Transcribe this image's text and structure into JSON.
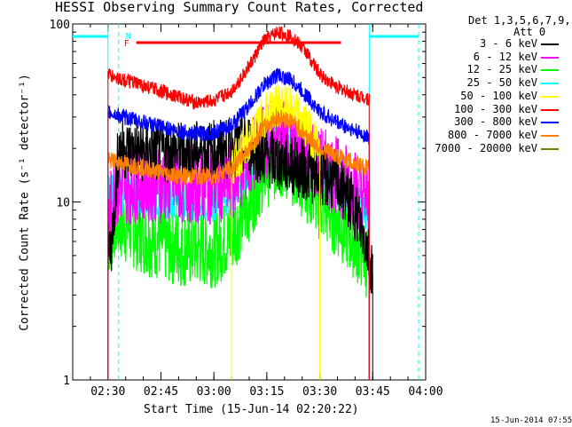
{
  "chart_data": {
    "type": "line",
    "title": "HESSI Observing Summary Count Rates, Corrected",
    "xlabel": "Start Time (15-Jun-14 02:20:22)",
    "ylabel": "Corrected Count Rate (s⁻¹ detector⁻¹)",
    "y_scale": "log",
    "ylim": [
      1,
      100
    ],
    "xlim": [
      "02:20",
      "04:00"
    ],
    "x_ticks": [
      "02:30",
      "02:45",
      "03:00",
      "03:15",
      "03:30",
      "03:45",
      "04:00"
    ],
    "y_ticks": [
      "1",
      "10",
      "100"
    ],
    "legend_header": [
      "Det 1,3,5,6,7,9,",
      "Att 0"
    ],
    "legend_position": "right",
    "series": [
      {
        "name": "3 - 6 keV",
        "color": "#000000",
        "x": [
          "02:30",
          "02:31",
          "02:33",
          "02:40",
          "02:50",
          "03:00",
          "03:05",
          "03:10",
          "03:14",
          "03:18",
          "03:22",
          "03:26",
          "03:30",
          "03:35",
          "03:40",
          "03:43",
          "03:45"
        ],
        "y": [
          5.0,
          6.0,
          20,
          19,
          19,
          19.5,
          20,
          21,
          18,
          17,
          16,
          15,
          14,
          13,
          9,
          6,
          4
        ]
      },
      {
        "name": "6 - 12 keV",
        "color": "#ff00ff",
        "x": [
          "02:30",
          "02:32",
          "02:40",
          "02:50",
          "03:00",
          "03:05",
          "03:10",
          "03:14",
          "03:18",
          "03:22",
          "03:26",
          "03:30",
          "03:35",
          "03:40",
          "03:44"
        ],
        "y": [
          8,
          12,
          13,
          12.5,
          12.5,
          13,
          17,
          22,
          23,
          22,
          19,
          16,
          14,
          12,
          10
        ]
      },
      {
        "name": "12 - 25 keV",
        "color": "#00ff00",
        "x": [
          "02:30",
          "02:32",
          "02:40",
          "02:50",
          "03:00",
          "03:05",
          "03:10",
          "03:14",
          "03:18",
          "03:22",
          "03:26",
          "03:30",
          "03:35",
          "03:40",
          "03:44"
        ],
        "y": [
          6,
          8,
          6.5,
          5.5,
          5.5,
          6.5,
          10,
          15,
          17,
          16,
          13,
          10,
          8,
          6,
          4.5
        ]
      },
      {
        "name": "25 - 50 keV",
        "color": "#00ffff",
        "x": [
          "02:30",
          "02:32",
          "02:40",
          "02:50",
          "03:00",
          "03:05",
          "03:10",
          "03:14",
          "03:18",
          "03:22",
          "03:26",
          "03:30",
          "03:35",
          "03:40",
          "03:44"
        ],
        "y": [
          11,
          11.5,
          10.5,
          10,
          10,
          11,
          15,
          22,
          27,
          26,
          20,
          15,
          12,
          10,
          8.5
        ]
      },
      {
        "name": "50 - 100 keV",
        "color": "#ffff00",
        "x": [
          "03:05",
          "03:10",
          "03:14",
          "03:18",
          "03:22",
          "03:26",
          "03:30"
        ],
        "y": [
          16,
          22,
          30,
          35,
          33,
          27,
          20
        ]
      },
      {
        "name": "100 - 300 keV",
        "color": "#ff0000",
        "x": [
          "02:30",
          "02:32",
          "02:40",
          "02:50",
          "02:55",
          "03:00",
          "03:05",
          "03:10",
          "03:14",
          "03:18",
          "03:22",
          "03:26",
          "03:30",
          "03:35",
          "03:40",
          "03:44"
        ],
        "y": [
          52,
          50,
          45,
          39,
          36,
          37,
          42,
          58,
          80,
          90,
          85,
          70,
          52,
          44,
          40,
          38
        ]
      },
      {
        "name": "300 - 800 keV",
        "color": "#0000ff",
        "x": [
          "02:30",
          "02:32",
          "02:40",
          "02:50",
          "02:55",
          "03:00",
          "03:05",
          "03:10",
          "03:14",
          "03:18",
          "03:22",
          "03:26",
          "03:30",
          "03:35",
          "03:40",
          "03:44"
        ],
        "y": [
          32,
          31,
          28,
          25,
          24,
          24.5,
          27,
          35,
          45,
          52,
          48,
          40,
          32,
          28,
          25,
          23
        ]
      },
      {
        "name": "800 - 7000 keV",
        "color": "#ff8000",
        "x": [
          "02:30",
          "02:32",
          "02:40",
          "02:50",
          "03:00",
          "03:05",
          "03:10",
          "03:14",
          "03:18",
          "03:22",
          "03:26",
          "03:30",
          "03:35",
          "03:40",
          "03:44"
        ],
        "y": [
          17,
          17,
          15.5,
          14,
          14,
          15.5,
          20,
          26,
          30,
          28.5,
          24,
          20,
          18,
          16.5,
          15.5
        ]
      },
      {
        "name": "7000 - 20000 keV",
        "color": "#808000",
        "x": [],
        "y": []
      }
    ],
    "annotations": [
      {
        "text": "N",
        "color": "#00ffff"
      },
      {
        "text": "F",
        "color": "#ff0000"
      }
    ],
    "flag_bars": [
      {
        "label": "N",
        "color": "#00ffff",
        "intervals": [
          [
            "02:20",
            "02:30"
          ],
          [
            "03:44",
            "03:58"
          ]
        ]
      },
      {
        "label": "F",
        "color": "#ff0000",
        "intervals": [
          [
            "02:38",
            "03:36"
          ]
        ]
      }
    ],
    "vertical_markers": [
      {
        "x": "02:30",
        "style": "solid",
        "color": "#00ffff"
      },
      {
        "x": "02:33",
        "style": "dashed",
        "color": "#00ffff"
      },
      {
        "x": "03:44",
        "style": "solid",
        "color": "#00ffff"
      },
      {
        "x": "03:58",
        "style": "dashed",
        "color": "#00ffff"
      }
    ]
  },
  "footer": {
    "timestamp": "15-Jun-2014 07:55"
  }
}
